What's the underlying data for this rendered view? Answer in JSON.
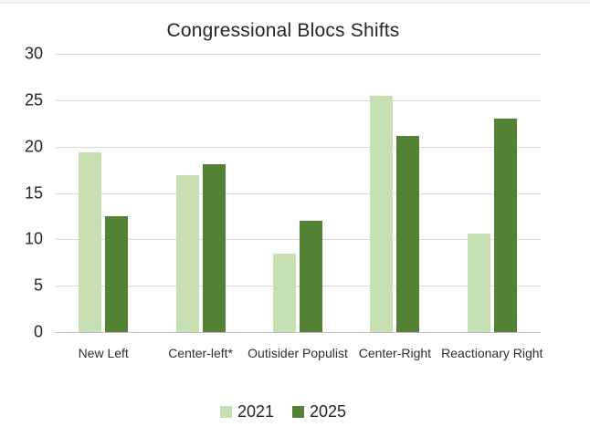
{
  "title": "Congressional Blocs Shifts",
  "chart_data": {
    "type": "bar",
    "title": "Congressional Blocs Shifts",
    "categories": [
      "New Left",
      "Center-left*",
      "Outisider Populist",
      "Center-Right",
      "Reactionary Right"
    ],
    "series": [
      {
        "name": "2021",
        "color": "#c6e0b4",
        "values": [
          19.4,
          16.9,
          8.5,
          25.5,
          10.6
        ]
      },
      {
        "name": "2025",
        "color": "#548235",
        "values": [
          12.5,
          18.1,
          12.0,
          21.1,
          23.0
        ]
      }
    ],
    "xlabel": "",
    "ylabel": "",
    "ylim": [
      0,
      30
    ],
    "yticks": [
      0,
      5,
      10,
      15,
      20,
      25,
      30
    ],
    "grid": true,
    "legend_position": "bottom"
  },
  "colors": {
    "background": "#ffffff",
    "top_strip": "#f6f6f7",
    "gridline": "#d9d9d9",
    "baseline": "#bfbfbf",
    "text": "#262626",
    "series_2021": "#c6e0b4",
    "series_2025": "#548235"
  }
}
